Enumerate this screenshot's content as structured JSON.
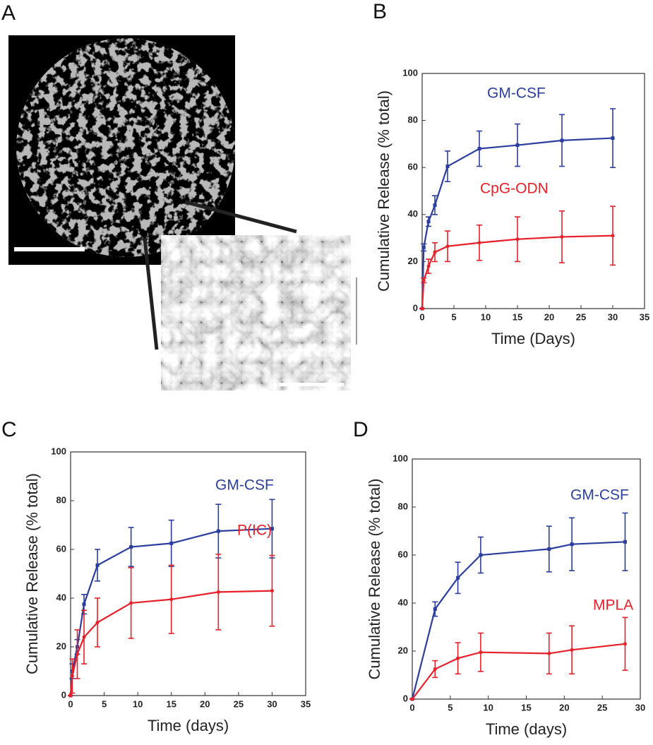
{
  "figure": {
    "panel_a": {
      "label": "A"
    }
  },
  "chart_data": [
    {
      "type": "line",
      "panel": "B",
      "x_label": "Time (Days)",
      "y_label": "Cumulative Release (% total)",
      "x": [
        0,
        0.25,
        1,
        2,
        4,
        9,
        15,
        22,
        30
      ],
      "series": [
        {
          "name": "GM-CSF",
          "color": "#2b3ea0",
          "values": [
            0,
            26,
            37,
            44,
            60.5,
            68,
            69.5,
            71.5,
            72.5
          ],
          "errors": [
            0,
            1.5,
            2,
            4,
            6.5,
            7.5,
            9,
            11,
            12.5
          ]
        },
        {
          "name": "CpG-ODN",
          "color": "#e8202a",
          "values": [
            0,
            12,
            18,
            24,
            26.5,
            28,
            29.5,
            30.5,
            31
          ],
          "errors": [
            0,
            1,
            3,
            4,
            6.5,
            7.5,
            9.5,
            11,
            12.5
          ]
        }
      ],
      "xlim": [
        0,
        35
      ],
      "xticks": [
        0,
        5,
        10,
        15,
        20,
        25,
        30,
        35
      ],
      "ylim": [
        0,
        100
      ],
      "yticks": [
        0,
        20,
        40,
        60,
        80,
        100
      ]
    },
    {
      "type": "line",
      "panel": "C",
      "x_label": "Time (days)",
      "y_label": "Cumulative Release (% total)",
      "x": [
        0,
        0.25,
        1,
        2,
        4,
        9,
        15,
        22,
        30
      ],
      "series": [
        {
          "name": "GM-CSF",
          "color": "#2b3ea0",
          "values": [
            0,
            10,
            20,
            37.5,
            53.5,
            61,
            62.5,
            67.5,
            68.5
          ],
          "errors": [
            0,
            3,
            3,
            4,
            6.5,
            8,
            9.5,
            11,
            12
          ]
        },
        {
          "name": "P(IC)",
          "color": "#e8202a",
          "values": [
            0,
            8,
            17,
            24,
            30,
            38,
            39.5,
            42.5,
            43
          ],
          "errors": [
            0,
            7,
            10,
            11,
            10,
            14.5,
            14,
            15.5,
            14.5
          ]
        }
      ],
      "xlim": [
        0,
        35
      ],
      "xticks": [
        0,
        5,
        10,
        15,
        20,
        25,
        30,
        35
      ],
      "ylim": [
        0,
        100
      ],
      "yticks": [
        0,
        20,
        40,
        60,
        80,
        100
      ]
    },
    {
      "type": "line",
      "panel": "D",
      "x_label": "Time (days)",
      "y_label": "Cumulative Release (% total)",
      "x": [
        0,
        3,
        6,
        9,
        18,
        21,
        28
      ],
      "series": [
        {
          "name": "GM-CSF",
          "color": "#2b3ea0",
          "values": [
            0,
            37.5,
            50.5,
            60,
            62.5,
            64.5,
            65.5
          ],
          "errors": [
            0,
            3,
            6.5,
            7.5,
            9.5,
            11,
            12
          ]
        },
        {
          "name": "MPLA",
          "color": "#e8202a",
          "values": [
            0,
            12.5,
            17,
            19.5,
            19,
            20.5,
            23
          ],
          "errors": [
            0,
            3.5,
            6.5,
            8,
            8.5,
            10,
            11
          ]
        }
      ],
      "xlim": [
        0,
        30
      ],
      "xticks": [
        0,
        5,
        10,
        15,
        20,
        25,
        30
      ],
      "ylim": [
        0,
        100
      ],
      "yticks": [
        0,
        20,
        40,
        60,
        80,
        100
      ]
    }
  ]
}
